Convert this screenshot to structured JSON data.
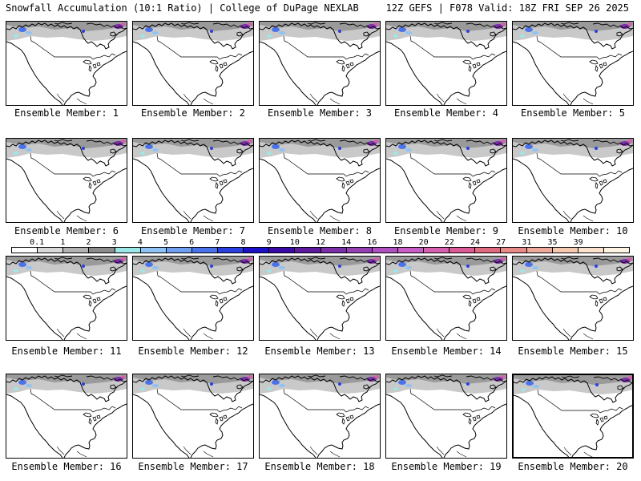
{
  "header": {
    "left": "Snowfall Accumulation (10:1 Ratio) | College of DuPage NEXLAB",
    "right": "12Z GEFS | F078 Valid: 18Z FRI SEP 26 2025"
  },
  "panels": [
    {
      "caption": "Ensemble Member: 1"
    },
    {
      "caption": "Ensemble Member: 2"
    },
    {
      "caption": "Ensemble Member: 3"
    },
    {
      "caption": "Ensemble Member: 4"
    },
    {
      "caption": "Ensemble Member: 5"
    },
    {
      "caption": "Ensemble Member: 6"
    },
    {
      "caption": "Ensemble Member: 7"
    },
    {
      "caption": "Ensemble Member: 8"
    },
    {
      "caption": "Ensemble Member: 9"
    },
    {
      "caption": "Ensemble Member: 10"
    },
    {
      "caption": "Ensemble Member: 11"
    },
    {
      "caption": "Ensemble Member: 12"
    },
    {
      "caption": "Ensemble Member: 13"
    },
    {
      "caption": "Ensemble Member: 14"
    },
    {
      "caption": "Ensemble Member: 15"
    },
    {
      "caption": "Ensemble Member: 16"
    },
    {
      "caption": "Ensemble Member: 17"
    },
    {
      "caption": "Ensemble Member: 18"
    },
    {
      "caption": "Ensemble Member: 19"
    },
    {
      "caption": "Ensemble Member: 20"
    }
  ],
  "colorbar": {
    "labels": [
      "0.1",
      "1",
      "2",
      "3",
      "4",
      "5",
      "6",
      "7",
      "8",
      "9",
      "10",
      "12",
      "14",
      "16",
      "18",
      "20",
      "22",
      "24",
      "27",
      "31",
      "35",
      "39"
    ],
    "colors": [
      "#ffffff",
      "#d9d9d9",
      "#b3b3b3",
      "#8c8c8c",
      "#9ce8e8",
      "#8fc2f5",
      "#6f9ff0",
      "#4a73eb",
      "#2a3fe0",
      "#1b10c8",
      "#3a0aa8",
      "#5d1a9e",
      "#7a2ea8",
      "#9640b4",
      "#b04fc0",
      "#c85dc8",
      "#d65fb0",
      "#dc5b96",
      "#e06a80",
      "#e88a88",
      "#f0aa9c",
      "#f5c8b0",
      "#fae2cc",
      "#fff3e4"
    ]
  }
}
